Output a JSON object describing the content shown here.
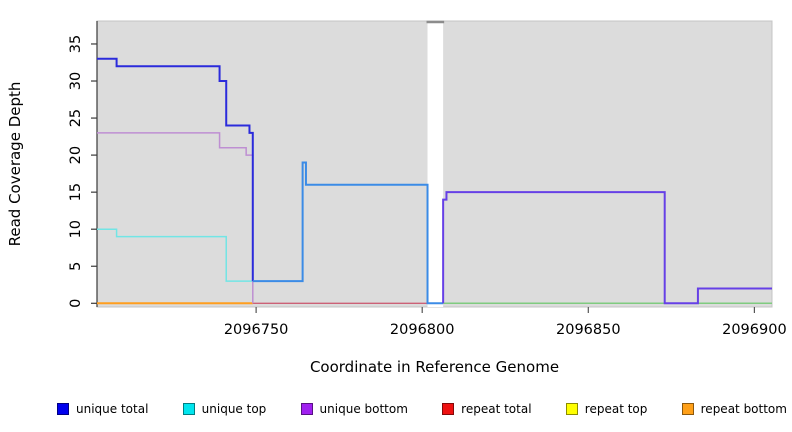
{
  "chart_data": {
    "type": "line",
    "subtype": "step-coverage-plot",
    "title": "",
    "xlabel": "Coordinate in Reference Genome",
    "ylabel": "Read Coverage Depth",
    "xlim": [
      2096702.1,
      2096905.3
    ],
    "ylim": [
      -0.5,
      38.1
    ],
    "x_ticks": [
      {
        "value": 2096750,
        "label": "2096750"
      },
      {
        "value": 2096800,
        "label": "2096800"
      },
      {
        "value": 2096850,
        "label": "2096850"
      },
      {
        "value": 2096900,
        "label": "2096900"
      }
    ],
    "y_ticks": [
      {
        "value": 0,
        "label": "0"
      },
      {
        "value": 5,
        "label": "5"
      },
      {
        "value": 10,
        "label": "10"
      },
      {
        "value": 15,
        "label": "15"
      },
      {
        "value": 20,
        "label": "20"
      },
      {
        "value": 25,
        "label": "25"
      },
      {
        "value": 30,
        "label": "30"
      },
      {
        "value": 35,
        "label": "35"
      }
    ],
    "plot_bg_color": "#DCDCDC",
    "plot_border_color": "#C5C5C5",
    "axis_line_color": "#3A3A3A",
    "gap_band": {
      "x_start": 2096801.6,
      "x_end": 2096806.3,
      "color": "#FFFFFF",
      "top_mark_color": "#8C8C8C"
    },
    "grid": false,
    "legend_position": "bottom",
    "series": [
      {
        "name": "unique total",
        "color": "#0000EE",
        "steps": [
          [
            2096702,
            33
          ],
          [
            2096708,
            32
          ],
          [
            2096739,
            30
          ],
          [
            2096741,
            24
          ],
          [
            2096748,
            23
          ],
          [
            2096749,
            3
          ],
          [
            2096764,
            19
          ],
          [
            2096765,
            16
          ],
          [
            2096802,
            0
          ],
          [
            2096806,
            14
          ],
          [
            2096807,
            15
          ],
          [
            2096873,
            0
          ],
          [
            2096883,
            2
          ]
        ],
        "x_end": 2096905
      },
      {
        "name": "unique top",
        "color": "#00E5EE",
        "steps": [
          [
            2096702,
            10
          ],
          [
            2096708,
            9
          ],
          [
            2096741,
            3
          ],
          [
            2096764,
            19
          ],
          [
            2096765,
            16
          ],
          [
            2096802,
            0
          ]
        ],
        "x_end": 2096905
      },
      {
        "name": "unique bottom",
        "color": "#A020F0",
        "steps": [
          [
            2096702,
            23
          ],
          [
            2096739,
            21
          ],
          [
            2096747,
            20
          ],
          [
            2096749,
            0
          ],
          [
            2096806,
            14
          ],
          [
            2096807,
            15
          ],
          [
            2096873,
            0
          ],
          [
            2096883,
            2
          ]
        ],
        "x_end": 2096905
      },
      {
        "name": "repeat total",
        "color": "#EE1111",
        "steps": [
          [
            2096702,
            0
          ]
        ],
        "x_end": 2096802
      },
      {
        "name": "repeat top",
        "color": "#FFFF00",
        "steps": [
          [
            2096702,
            0
          ]
        ],
        "x_end": 2096905
      },
      {
        "name": "repeat bottom",
        "color": "#FFA018",
        "steps": [
          [
            2096702,
            0
          ]
        ],
        "x_end": 2096749
      }
    ],
    "rendered_segments": [
      {
        "name": "repeat-bottom-zero-line",
        "color": "#FF9E1F",
        "width": 2,
        "verts": [
          [
            2096702.1,
            0
          ]
        ],
        "x_end": 2096749
      },
      {
        "name": "repeat-total-zero-line",
        "color": "#CC6177",
        "width": 1.4,
        "verts": [
          [
            2096749,
            0
          ]
        ],
        "x_end": 2096801.6
      },
      {
        "name": "zero-line-after-gap",
        "color": "#7FCB7F",
        "width": 1.5,
        "verts": [
          [
            2096806.3,
            0
          ]
        ],
        "x_end": 2096905.3
      },
      {
        "name": "unique-top-visible",
        "color": "#72E5E5",
        "width": 1.5,
        "verts": [
          [
            2096702.1,
            10
          ],
          [
            2096708,
            9
          ],
          [
            2096741,
            3
          ]
        ],
        "x_end": 2096749
      },
      {
        "name": "unique-bottom-visible",
        "color": "#BE8FD2",
        "width": 1.5,
        "verts": [
          [
            2096702.1,
            23
          ],
          [
            2096739,
            21
          ],
          [
            2096747,
            20
          ],
          [
            2096749,
            0
          ]
        ],
        "x_end": 2096749
      },
      {
        "name": "unique-total-visible",
        "color": "#2B2BDB",
        "width": 2,
        "verts": [
          [
            2096702.1,
            33
          ],
          [
            2096708,
            32
          ],
          [
            2096739,
            30
          ],
          [
            2096741,
            24
          ],
          [
            2096748,
            23
          ],
          [
            2096749,
            3
          ]
        ],
        "x_end": 2096749
      },
      {
        "name": "total-top-overlap",
        "color": "#3B8BE6",
        "width": 2,
        "verts": [
          [
            2096749,
            3
          ],
          [
            2096764,
            19
          ],
          [
            2096765,
            16
          ],
          [
            2096801.6,
            0
          ]
        ],
        "x_end": 2096806.3
      },
      {
        "name": "total-bottom-overlap-after-gap",
        "color": "#6640E6",
        "width": 2,
        "verts": [
          [
            2096806.3,
            0
          ],
          [
            2096806.3,
            14
          ],
          [
            2096807.3,
            15
          ],
          [
            2096873,
            0
          ],
          [
            2096883,
            2
          ]
        ],
        "x_end": 2096905.3
      }
    ]
  },
  "legend": {
    "items": [
      {
        "label": "unique total",
        "color": "#0000EE"
      },
      {
        "label": "unique top",
        "color": "#00E5EE"
      },
      {
        "label": "unique bottom",
        "color": "#A020F0"
      },
      {
        "label": "repeat total",
        "color": "#EE1111"
      },
      {
        "label": "repeat top",
        "color": "#FFFF00"
      },
      {
        "label": "repeat bottom",
        "color": "#FFA018"
      }
    ]
  }
}
